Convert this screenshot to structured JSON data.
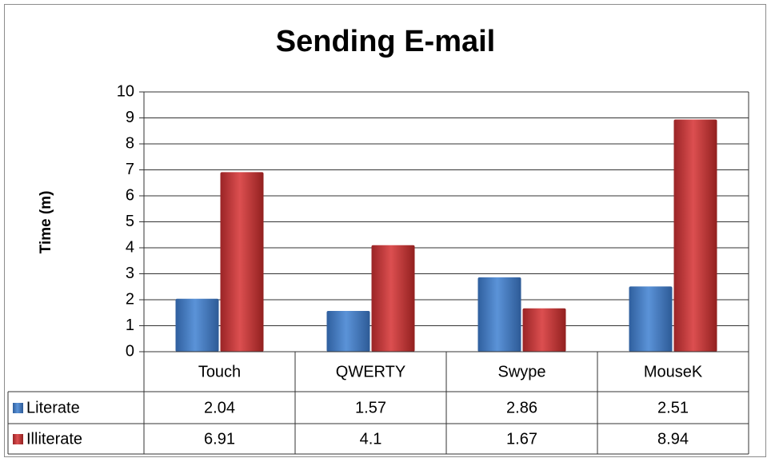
{
  "chart_data": {
    "type": "bar",
    "title": "Sending E-mail",
    "y_label": "Time (m)",
    "categories": [
      "Touch",
      "QWERTY",
      "Swype",
      "MouseK"
    ],
    "series": [
      {
        "name": "Literate",
        "color": "#4a7ebb",
        "values": [
          2.04,
          1.57,
          2.86,
          2.51
        ]
      },
      {
        "name": "Illiterate",
        "color": "#c0393b",
        "values": [
          6.91,
          4.1,
          1.67,
          8.94
        ]
      }
    ],
    "ylim": [
      0,
      10
    ],
    "yticks": [
      0,
      1,
      2,
      3,
      4,
      5,
      6,
      7,
      8,
      9,
      10
    ],
    "grid": true,
    "data_table": true
  }
}
